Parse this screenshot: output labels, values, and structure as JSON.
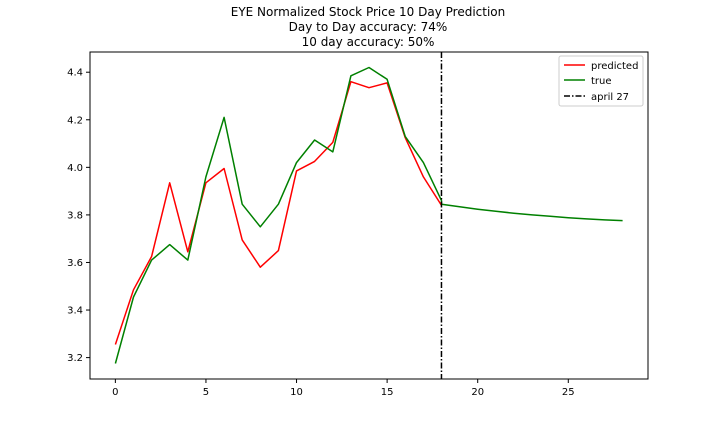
{
  "chart_data": {
    "type": "line",
    "title": "EYE Normalized Stock Price 10 Day Prediction",
    "subtitles": [
      "Day to Day accuracy: 74%",
      "10 day accuracy: 50%"
    ],
    "xlabel": "",
    "ylabel": "",
    "xlim": [
      -1.4,
      29.4
    ],
    "ylim": [
      3.11,
      4.485
    ],
    "xticks": [
      0,
      5,
      10,
      15,
      20,
      25
    ],
    "yticks": [
      3.2,
      3.4,
      3.6,
      3.8,
      4.0,
      4.2,
      4.4
    ],
    "grid": false,
    "legend_position": "top-right",
    "series": [
      {
        "name": "predicted",
        "color": "#ff0000",
        "x": [
          0,
          1,
          2,
          3,
          4,
          5,
          6,
          7,
          8,
          9,
          10,
          11,
          12,
          13,
          14,
          15,
          16,
          17,
          18
        ],
        "y": [
          3.255,
          3.485,
          3.625,
          3.935,
          3.645,
          3.935,
          3.995,
          3.695,
          3.58,
          3.65,
          3.985,
          4.025,
          4.105,
          4.36,
          4.335,
          4.355,
          4.125,
          3.96,
          3.84
        ]
      },
      {
        "name": "true",
        "color": "#008000",
        "x": [
          0,
          1,
          2,
          3,
          4,
          5,
          6,
          7,
          8,
          9,
          10,
          11,
          12,
          13,
          14,
          15,
          16,
          17,
          18,
          18,
          19,
          20,
          21,
          22,
          23,
          24,
          25,
          26,
          27,
          28
        ],
        "y": [
          3.175,
          3.455,
          3.61,
          3.675,
          3.61,
          3.96,
          4.21,
          3.845,
          3.75,
          3.845,
          4.02,
          4.115,
          4.065,
          4.385,
          4.42,
          4.37,
          4.13,
          4.02,
          3.86,
          3.845,
          3.834,
          3.824,
          3.815,
          3.807,
          3.8,
          3.794,
          3.788,
          3.783,
          3.779,
          3.776
        ]
      }
    ],
    "vlines": [
      {
        "name": "april 27",
        "x": 18,
        "color": "#000000",
        "style": "dashdot"
      }
    ]
  }
}
